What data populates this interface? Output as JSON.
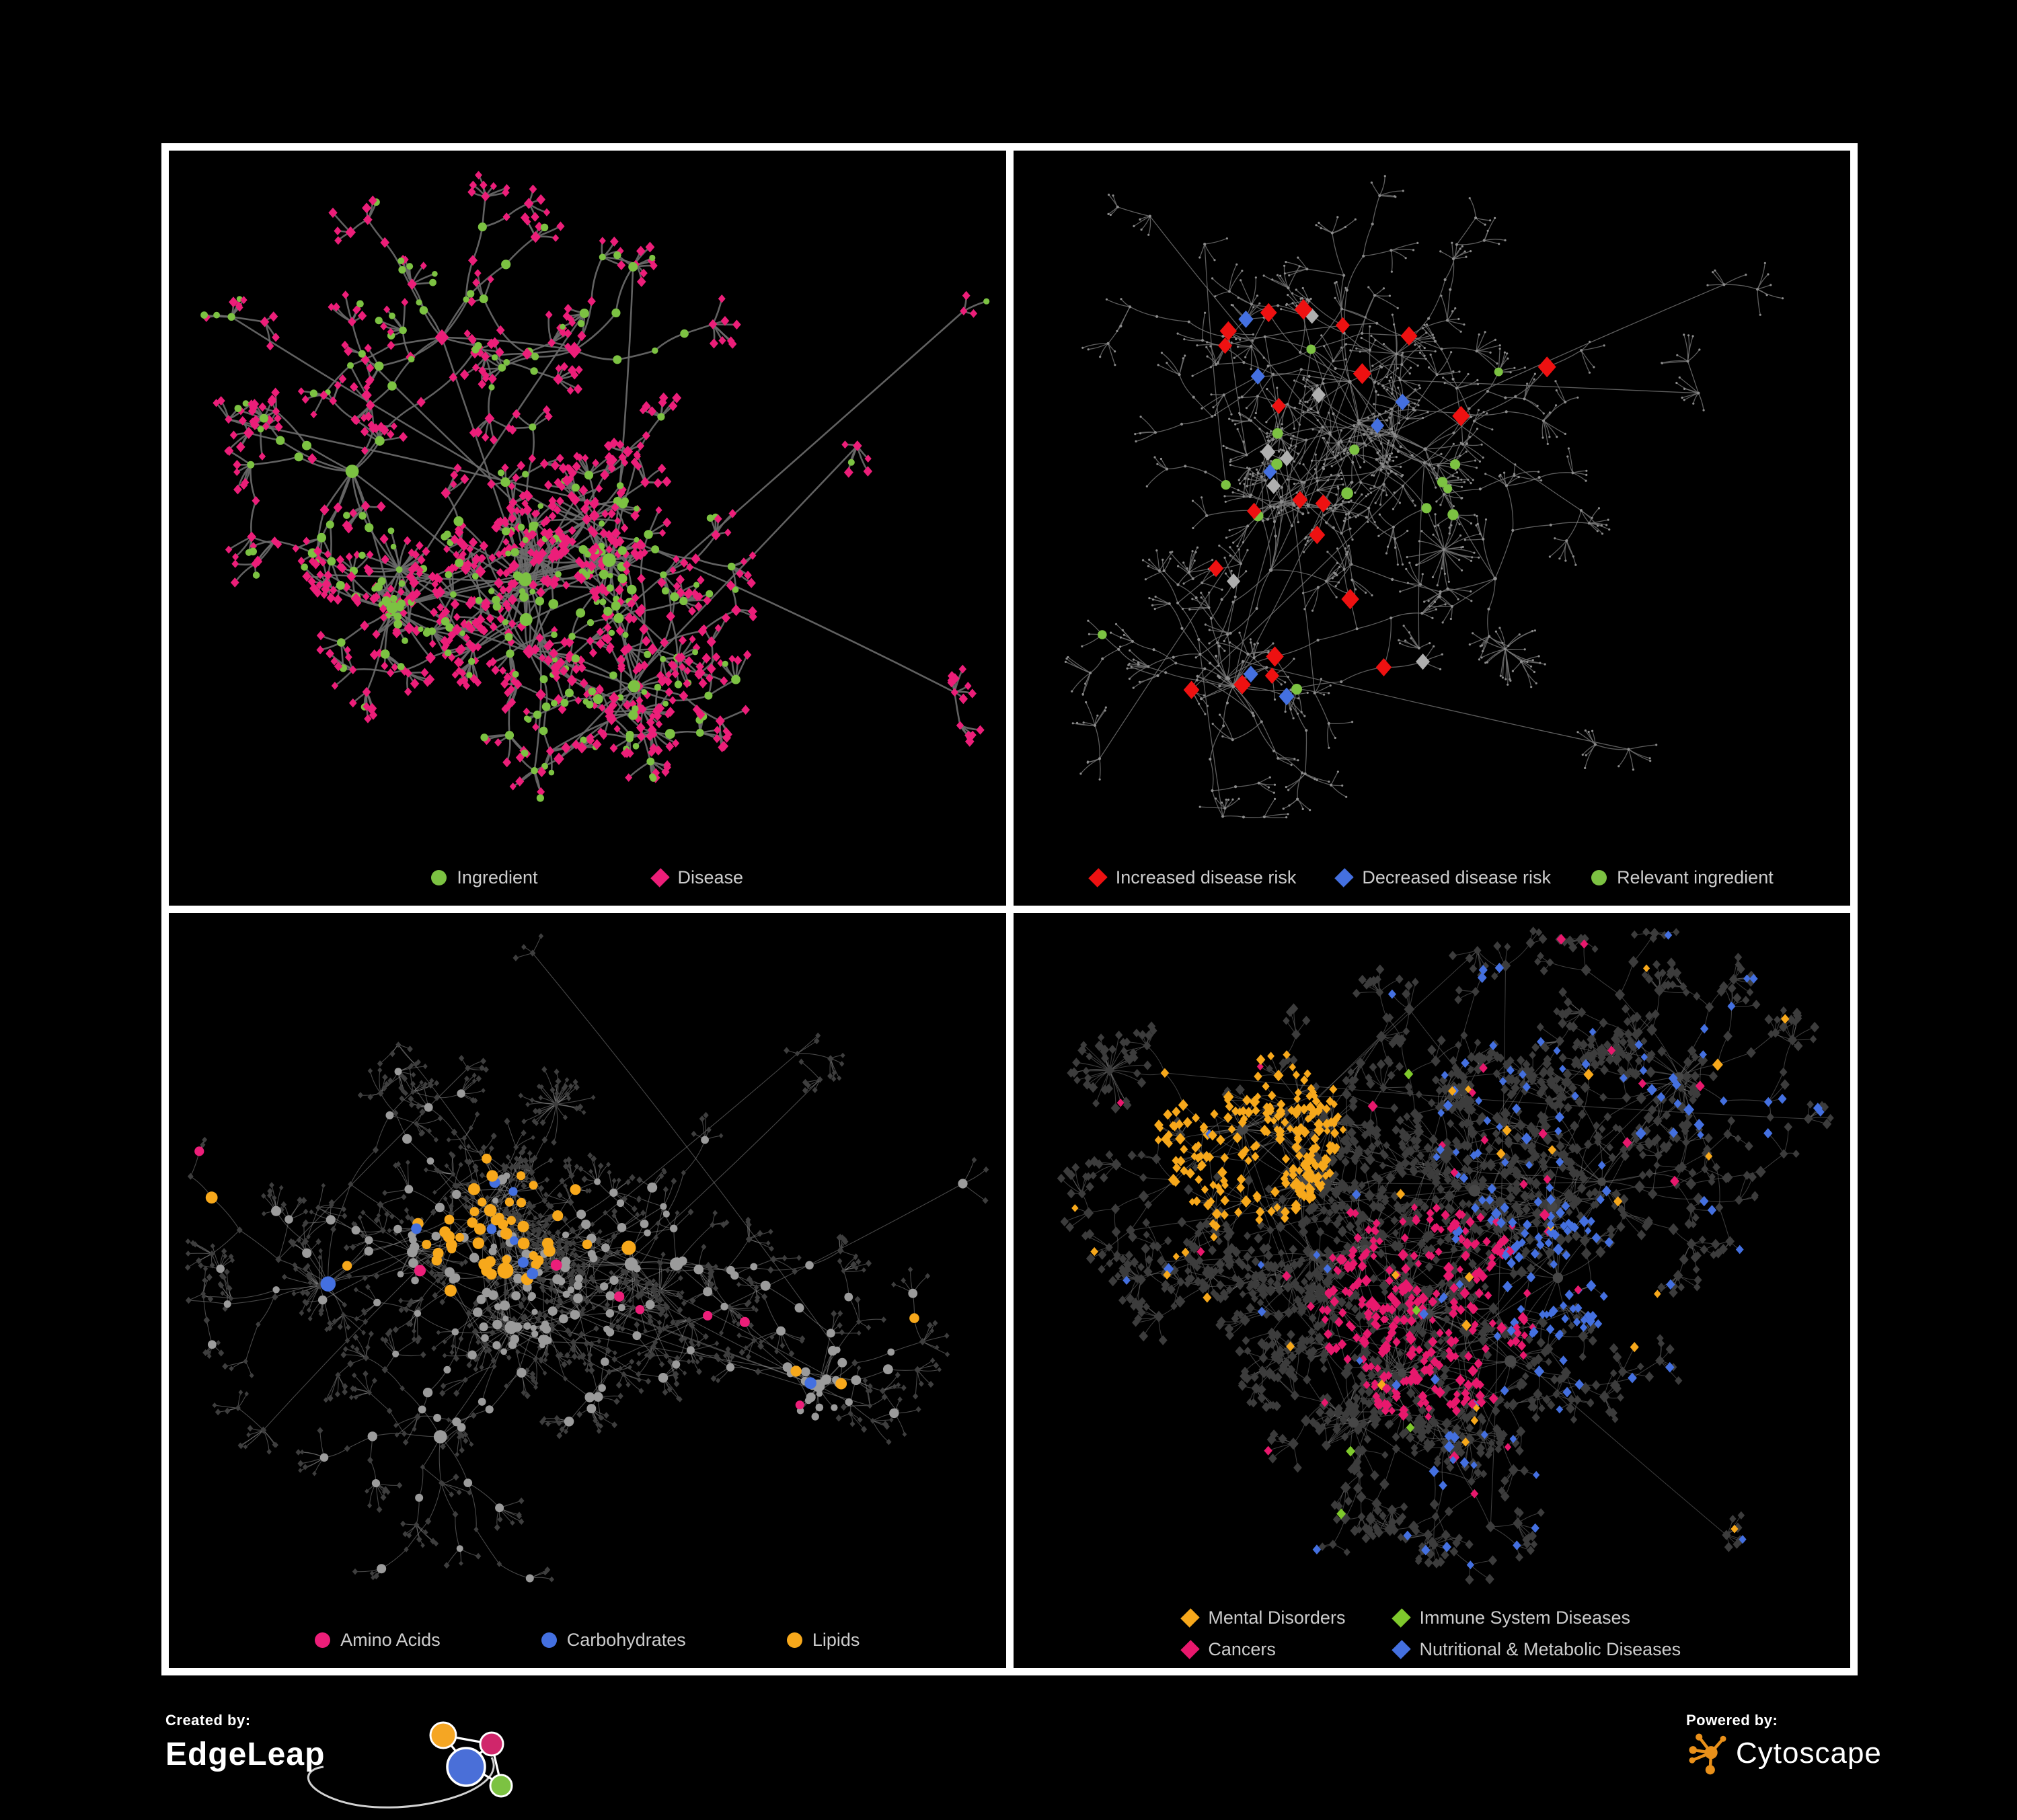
{
  "figure": {
    "background": "#000000",
    "grid_border_color": "#ffffff"
  },
  "colors": {
    "ingredient_green": "#7CC242",
    "disease_pink": "#EC1E79",
    "risk_red": "#EE1111",
    "risk_blue": "#4470E0",
    "neutral_silver": "#AFAFAF",
    "lipid_amber": "#F7A81B",
    "cancer_magenta": "#E8186D",
    "immune_green": "#7FC92C",
    "legend_text": "#cccccc"
  },
  "panels": [
    {
      "id": "ingredient-disease",
      "legend": {
        "items": [
          {
            "label": "Ingredient",
            "shape": "circle",
            "color": "#7CC242"
          },
          {
            "label": "Disease",
            "shape": "diamond",
            "color": "#EC1E79"
          }
        ]
      },
      "network": {
        "seed": 101,
        "style": "two-type",
        "edge": {
          "color": "#6B6B6B",
          "width": 2.6,
          "opacity": 0.9
        },
        "density": {
          "hubs": 9,
          "clumps": 3,
          "satellites": 9,
          "bursts": 3,
          "branchMin": 5,
          "branchMax": 11,
          "maxSteps": 4,
          "step": 62,
          "sideProb": 0.32,
          "fanMin": 3,
          "fanMax": 8,
          "longEdges": 4
        },
        "palette": {
          "primary": "#7CC242",
          "secondary": "#EC1E79"
        }
      }
    },
    {
      "id": "disease-risk",
      "legend": {
        "items": [
          {
            "label": "Increased disease risk",
            "shape": "diamond",
            "color": "#EE1111"
          },
          {
            "label": "Decreased disease risk",
            "shape": "diamond",
            "color": "#4470E0"
          },
          {
            "label": "Relevant ingredient",
            "shape": "circle",
            "color": "#7CC242"
          }
        ]
      },
      "network": {
        "seed": 202,
        "style": "highlight",
        "edge": {
          "color": "#747474",
          "width": 1.3,
          "opacity": 0.8
        },
        "density": {
          "hubs": 10,
          "clumps": 2,
          "satellites": 12,
          "bursts": 3,
          "branchMin": 5,
          "branchMax": 12,
          "maxSteps": 5,
          "step": 60,
          "sideProb": 0.3,
          "fanMin": 3,
          "fanMax": 7,
          "longEdges": 7
        },
        "base": {
          "color": "#8C8C8C"
        },
        "highlights": [
          {
            "shape": "diamond",
            "color": "#EE1111",
            "count": 21,
            "min": 10,
            "max": 14
          },
          {
            "shape": "diamond",
            "color": "#4470E0",
            "count": 7,
            "min": 9.5,
            "max": 12
          },
          {
            "shape": "diamond",
            "color": "#AFAFAF",
            "count": 7,
            "min": 10,
            "max": 12
          },
          {
            "shape": "circle",
            "color": "#7CC242",
            "count": 15,
            "min": 6.5,
            "max": 9
          }
        ]
      }
    },
    {
      "id": "ingredient-classes",
      "legend": {
        "items": [
          {
            "label": "Amino Acids",
            "shape": "circle",
            "color": "#EC1E79"
          },
          {
            "label": "Carbohydrates",
            "shape": "circle",
            "color": "#4470E0"
          },
          {
            "label": "Lipids",
            "shape": "circle",
            "color": "#F7A81B"
          }
        ]
      },
      "network": {
        "seed": 303,
        "style": "classes-circles",
        "edge": {
          "color": "#8F8F8F",
          "width": 1.1,
          "opacity": 0.5
        },
        "density": {
          "hubs": 10,
          "clumps": 5,
          "satellites": 10,
          "bursts": 4,
          "branchMin": 6,
          "branchMax": 12,
          "maxSteps": 5,
          "step": 58,
          "sideProb": 0.34,
          "fanMin": 3,
          "fanMax": 8,
          "longEdges": 5
        },
        "base": {
          "circle": "#9B9B9B",
          "diamond": "#3E3E3E"
        },
        "classes": {
          "amino": "#EC1E79",
          "carb": "#4470E0",
          "lipid": "#F7A81B"
        }
      }
    },
    {
      "id": "disease-classes",
      "legend": {
        "items": [
          {
            "label": "Mental Disorders",
            "shape": "diamond",
            "color": "#F7A81B"
          },
          {
            "label": "Immune System Diseases",
            "shape": "diamond",
            "color": "#7FC92C"
          },
          {
            "label": "Cancers",
            "shape": "diamond",
            "color": "#E8186D"
          },
          {
            "label": "Nutritional & Metabolic Diseases",
            "shape": "diamond",
            "color": "#4470E0"
          }
        ]
      },
      "network": {
        "seed": 404,
        "style": "classes-diamonds",
        "edge": {
          "color": "#909090",
          "width": 1.05,
          "opacity": 0.42
        },
        "density": {
          "hubs": 13,
          "clumps": 6,
          "satellites": 10,
          "bursts": 3,
          "branchMin": 7,
          "branchMax": 13,
          "maxSteps": 5,
          "step": 56,
          "sideProb": 0.36,
          "fanMin": 3,
          "fanMax": 8,
          "longEdges": 6
        },
        "base": {
          "diamond": "#3C3C3C",
          "circle": "#474747"
        },
        "classes": {
          "mental": "#F7A81B",
          "immune": "#7FC92C",
          "cancer": "#E8186D",
          "nutri": "#4470E0"
        }
      }
    }
  ],
  "footer": {
    "created_by_label": "Created by:",
    "created_by_name": "EdgeLeap",
    "powered_by_label": "Powered by:",
    "powered_by_name": "Cytoscape",
    "edgeleap_logo_colors": {
      "orange": "#F5A623",
      "pink": "#D0266B",
      "blue": "#4A6FD8",
      "green": "#7CC242"
    },
    "cytoscape_logo_color": "#E9901A"
  }
}
